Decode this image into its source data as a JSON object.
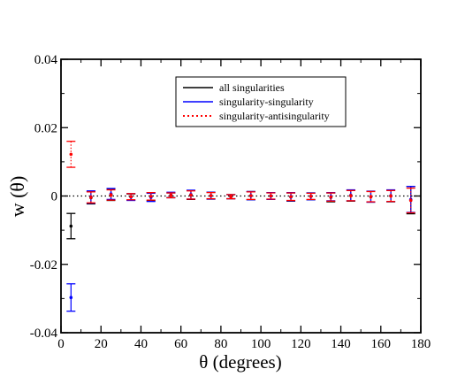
{
  "chart_data": {
    "type": "scatter",
    "xlabel": "θ (degrees)",
    "ylabel": "w (θ)",
    "xlim": [
      0,
      180
    ],
    "ylim": [
      -0.04,
      0.04
    ],
    "x_ticks": [
      0,
      20,
      40,
      60,
      80,
      100,
      120,
      140,
      160,
      180
    ],
    "y_ticks": [
      -0.04,
      -0.02,
      0,
      0.02,
      0.04
    ],
    "y_tick_labels": [
      "-0.04",
      "-0.02",
      "0",
      "0.02",
      "0.04"
    ],
    "zero_line": true,
    "legend_position": "top-center",
    "series": [
      {
        "name": "all singularities",
        "color": "#000000",
        "line_style": "solid",
        "x": [
          5,
          15,
          25,
          35,
          45,
          55,
          65,
          75,
          85,
          95,
          105,
          115,
          125,
          135,
          145,
          155,
          165,
          175
        ],
        "y": [
          -0.0088,
          -0.0005,
          0.0004,
          -0.0003,
          -0.0002,
          0.0002,
          0.0003,
          0.0001,
          -0.0002,
          0.0001,
          0.0,
          -0.0003,
          -0.0001,
          -0.0004,
          0.0001,
          -0.0002,
          0.0,
          -0.0012
        ],
        "err": [
          0.0037,
          0.0018,
          0.0017,
          0.0009,
          0.0012,
          0.0007,
          0.0013,
          0.001,
          0.0006,
          0.0012,
          0.001,
          0.0012,
          0.001,
          0.0013,
          0.0016,
          0.0016,
          0.0017,
          0.004
        ]
      },
      {
        "name": "singularity-singularity",
        "color": "#0000ff",
        "line_style": "solid",
        "x": [
          5,
          15,
          25,
          35,
          45,
          55,
          65,
          75,
          85,
          95,
          105,
          115,
          125,
          135,
          145,
          155,
          165,
          175
        ],
        "y": [
          -0.0297,
          -0.0003,
          0.0006,
          -0.0003,
          -0.0004,
          0.0003,
          0.0004,
          0.0001,
          -0.0002,
          0.0001,
          0.0,
          -0.0002,
          -0.0001,
          -0.0002,
          0.0002,
          -0.0002,
          0.0001,
          -0.001
        ],
        "err": [
          0.004,
          0.0018,
          0.0016,
          0.001,
          0.0012,
          0.0008,
          0.0013,
          0.001,
          0.0006,
          0.0012,
          0.001,
          0.0012,
          0.001,
          0.0012,
          0.0016,
          0.0016,
          0.0017,
          0.0038
        ]
      },
      {
        "name": "singularity-antisingularity",
        "color": "#ff0000",
        "line_style": "dotted",
        "x": [
          5,
          15,
          25,
          35,
          45,
          55,
          65,
          75,
          85,
          95,
          105,
          115,
          125,
          135,
          145,
          155,
          165,
          175
        ],
        "y": [
          0.0122,
          -0.0004,
          0.0003,
          -0.0002,
          -0.0001,
          0.0002,
          0.0003,
          0.0001,
          -0.0002,
          0.0001,
          0.0,
          -0.0002,
          -0.0001,
          -0.0003,
          0.0001,
          -0.0002,
          0.0,
          -0.0013
        ],
        "err": [
          0.0038,
          0.0016,
          0.0015,
          0.0009,
          0.0011,
          0.0007,
          0.0012,
          0.0009,
          0.0006,
          0.0011,
          0.0009,
          0.0011,
          0.0009,
          0.0012,
          0.0015,
          0.0015,
          0.0016,
          0.0036
        ]
      }
    ]
  }
}
